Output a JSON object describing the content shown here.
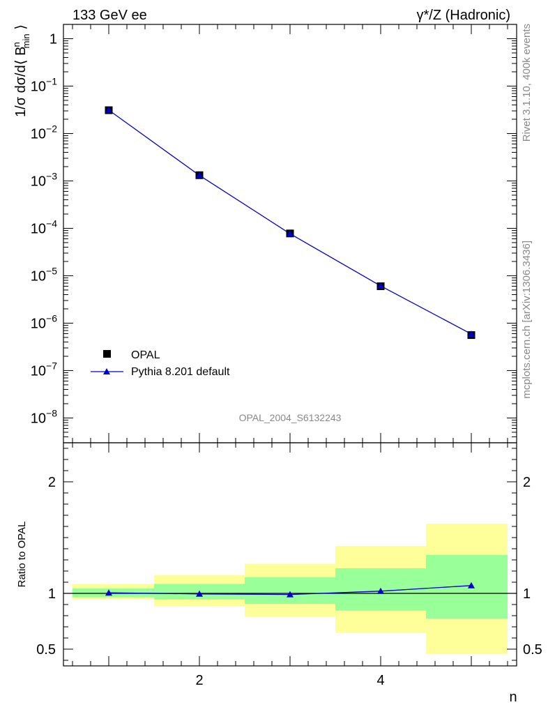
{
  "header": {
    "left": "133 GeV ee",
    "right": "γ*/Z (Hadronic)"
  },
  "side": {
    "rivet": "Rivet 3.1.10,  400k events",
    "mcplots": "mcplots.cern.ch [arXiv:1306.3436]"
  },
  "watermark": "OPAL_2004_S6132243",
  "main_ylabel": "1/σ dσ/d⟨ B_min^n ⟩",
  "ratio_ylabel": "Ratio to OPAL",
  "xlabel": "n",
  "legend": [
    {
      "label": "OPAL",
      "marker": "square",
      "color": "#000000"
    },
    {
      "label": "Pythia 8.201 default",
      "marker": "triangle",
      "color": "#0000cc"
    }
  ],
  "colors": {
    "mc": "#0000cc",
    "data": "#000000",
    "band_inner": "#99ff99",
    "band_outer": "#ffff99"
  },
  "chart_data": [
    {
      "type": "scatter",
      "scale": "log",
      "x": [
        1,
        2,
        3,
        4,
        5
      ],
      "xlim": [
        0.5,
        5.5
      ],
      "ylim": [
        3e-09,
        2
      ],
      "yticks": [
        "1",
        "10^-1",
        "10^-2",
        "10^-3",
        "10^-4",
        "10^-5",
        "10^-6",
        "10^-7",
        "10^-8"
      ],
      "series": [
        {
          "name": "OPAL",
          "values": [
            0.031,
            0.00132,
            7.8e-05,
            6e-06,
            5.6e-07
          ]
        },
        {
          "name": "Pythia 8.201 default",
          "values": [
            0.0312,
            0.00131,
            7.7e-05,
            6.1e-06,
            5.9e-07
          ]
        }
      ]
    },
    {
      "type": "line",
      "scale": "linear",
      "x": [
        1,
        2,
        3,
        4,
        5
      ],
      "xlim": [
        0.5,
        5.5
      ],
      "ylim": [
        0.35,
        2.35
      ],
      "xticks": [
        "2",
        "4"
      ],
      "yticks": [
        "0.5",
        "1",
        "2"
      ],
      "ratio": [
        1.005,
        0.995,
        0.99,
        1.02,
        1.07
      ],
      "band_inner": [
        [
          0.965,
          1.045
        ],
        [
          0.945,
          1.085
        ],
        [
          0.905,
          1.145
        ],
        [
          0.845,
          1.225
        ],
        [
          0.775,
          1.345
        ]
      ],
      "band_outer": [
        [
          0.945,
          1.085
        ],
        [
          0.885,
          1.165
        ],
        [
          0.79,
          1.265
        ],
        [
          0.645,
          1.425
        ],
        [
          0.455,
          1.625
        ]
      ]
    }
  ]
}
